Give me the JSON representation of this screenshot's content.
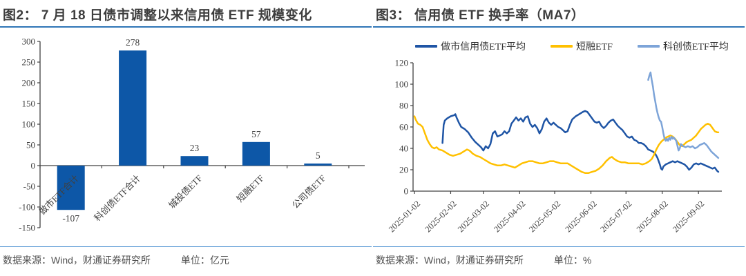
{
  "panels": [
    {
      "title": "图2：  7 月 18 日债市调整以来信用债 ETF 规模变化",
      "source": "数据来源：Wind，财通证券研究所",
      "unit_label": "单位：亿元"
    },
    {
      "title": "图3：  信用债 ETF 换手率（MA7）",
      "source": "数据来源：Wind，财通证券研究所",
      "unit_label": "单位：%"
    }
  ],
  "colors": {
    "accent_underline": "#2e75b6",
    "footer_divider": "#5b9bd5",
    "axis": "#404040"
  },
  "chart_data": [
    {
      "type": "bar",
      "title": "7 月 18 日债市调整以来信用债 ETF 规模变化",
      "categories": [
        "做市ETF合计",
        "科创债ETF合计",
        "城投债ETF",
        "短融ETF",
        "公司债ETF"
      ],
      "values": [
        -107,
        278,
        23,
        57,
        5
      ],
      "bar_color": "#0d57a7",
      "ylim": [
        -150,
        300
      ],
      "ytick_step": 50,
      "grid": false,
      "unit": "亿元"
    },
    {
      "type": "line",
      "title": "信用债 ETF 换手率（MA7）",
      "ylim": [
        0,
        120
      ],
      "ytick_step": 20,
      "grid": false,
      "legend_position": "top",
      "unit": "%",
      "x_range_days": [
        0,
        263
      ],
      "x_ticks": [
        {
          "day": 0,
          "label": "2025-01-02"
        },
        {
          "day": 31,
          "label": "2025-02-02"
        },
        {
          "day": 59,
          "label": "2025-03-02"
        },
        {
          "day": 90,
          "label": "2025-04-02"
        },
        {
          "day": 120,
          "label": "2025-05-02"
        },
        {
          "day": 151,
          "label": "2025-06-02"
        },
        {
          "day": 181,
          "label": "2025-07-02"
        },
        {
          "day": 212,
          "label": "2025-08-02"
        },
        {
          "day": 243,
          "label": "2025-09-02"
        }
      ],
      "series": [
        {
          "name": "做市信用债ETF平均",
          "color": "#1f55a5",
          "points": [
            [
              24,
              45
            ],
            [
              25,
              62
            ],
            [
              26,
              66
            ],
            [
              28,
              68
            ],
            [
              31,
              70
            ],
            [
              34,
              71
            ],
            [
              35,
              72
            ],
            [
              36,
              69
            ],
            [
              38,
              64
            ],
            [
              40,
              60
            ],
            [
              43,
              58
            ],
            [
              46,
              55
            ],
            [
              49,
              50
            ],
            [
              52,
              46
            ],
            [
              55,
              43
            ],
            [
              57,
              41
            ],
            [
              59,
              38
            ],
            [
              61,
              42
            ],
            [
              63,
              40
            ],
            [
              65,
              44
            ],
            [
              67,
              54
            ],
            [
              69,
              56
            ],
            [
              71,
              51
            ],
            [
              73,
              52
            ],
            [
              75,
              53
            ],
            [
              77,
              56
            ],
            [
              79,
              54
            ],
            [
              81,
              56
            ],
            [
              83,
              63
            ],
            [
              85,
              66
            ],
            [
              87,
              69
            ],
            [
              89,
              66
            ],
            [
              91,
              68
            ],
            [
              93,
              65
            ],
            [
              95,
              69
            ],
            [
              97,
              70
            ],
            [
              99,
              63
            ],
            [
              101,
              60
            ],
            [
              103,
              62
            ],
            [
              105,
              59
            ],
            [
              107,
              54
            ],
            [
              109,
              58
            ],
            [
              111,
              65
            ],
            [
              113,
              68
            ],
            [
              115,
              64
            ],
            [
              117,
              62
            ],
            [
              119,
              64
            ],
            [
              121,
              62
            ],
            [
              123,
              60
            ],
            [
              125,
              59
            ],
            [
              127,
              57
            ],
            [
              129,
              55
            ],
            [
              131,
              56
            ],
            [
              133,
              62
            ],
            [
              135,
              67
            ],
            [
              138,
              70
            ],
            [
              141,
              72
            ],
            [
              144,
              74
            ],
            [
              146,
              75
            ],
            [
              148,
              74
            ],
            [
              150,
              71
            ],
            [
              152,
              68
            ],
            [
              154,
              65
            ],
            [
              156,
              64
            ],
            [
              158,
              65
            ],
            [
              160,
              61
            ],
            [
              162,
              59
            ],
            [
              164,
              61
            ],
            [
              166,
              64
            ],
            [
              168,
              66
            ],
            [
              170,
              67
            ],
            [
              172,
              64
            ],
            [
              174,
              61
            ],
            [
              176,
              59
            ],
            [
              178,
              57
            ],
            [
              180,
              54
            ],
            [
              182,
              51
            ],
            [
              184,
              50
            ],
            [
              186,
              51
            ],
            [
              188,
              48
            ],
            [
              190,
              47
            ],
            [
              192,
              45
            ],
            [
              194,
              45
            ],
            [
              196,
              44
            ],
            [
              198,
              42
            ],
            [
              200,
              39
            ],
            [
              202,
              38
            ],
            [
              204,
              37
            ],
            [
              206,
              35
            ],
            [
              208,
              31
            ],
            [
              210,
              25
            ],
            [
              211,
              21
            ],
            [
              212,
              20
            ],
            [
              213,
              23
            ],
            [
              215,
              25
            ],
            [
              217,
              26
            ],
            [
              219,
              27
            ],
            [
              221,
              28
            ],
            [
              223,
              27
            ],
            [
              225,
              28
            ],
            [
              227,
              27
            ],
            [
              229,
              26
            ],
            [
              231,
              25
            ],
            [
              233,
              23
            ],
            [
              235,
              20
            ],
            [
              237,
              22
            ],
            [
              239,
              25
            ],
            [
              241,
              26
            ],
            [
              243,
              25
            ],
            [
              245,
              26
            ],
            [
              247,
              25
            ],
            [
              249,
              24
            ],
            [
              251,
              23
            ],
            [
              253,
              22
            ],
            [
              255,
              21
            ],
            [
              257,
              22
            ],
            [
              259,
              19
            ],
            [
              260,
              18
            ]
          ]
        },
        {
          "name": "短融ETF",
          "color": "#ffc000",
          "points": [
            [
              0,
              70
            ],
            [
              1,
              67
            ],
            [
              2,
              65
            ],
            [
              3,
              63
            ],
            [
              5,
              62
            ],
            [
              7,
              60
            ],
            [
              9,
              54
            ],
            [
              11,
              48
            ],
            [
              13,
              44
            ],
            [
              15,
              41
            ],
            [
              17,
              40
            ],
            [
              19,
              41
            ],
            [
              21,
              39
            ],
            [
              24,
              38
            ],
            [
              27,
              36
            ],
            [
              30,
              34
            ],
            [
              33,
              33
            ],
            [
              36,
              34
            ],
            [
              39,
              35
            ],
            [
              42,
              37
            ],
            [
              45,
              39
            ],
            [
              47,
              38
            ],
            [
              50,
              35
            ],
            [
              53,
              33
            ],
            [
              56,
              32
            ],
            [
              59,
              30
            ],
            [
              62,
              28
            ],
            [
              65,
              26
            ],
            [
              68,
              25
            ],
            [
              71,
              24
            ],
            [
              74,
              24
            ],
            [
              77,
              25
            ],
            [
              80,
              24
            ],
            [
              83,
              23
            ],
            [
              86,
              22
            ],
            [
              89,
              24
            ],
            [
              92,
              26
            ],
            [
              95,
              27
            ],
            [
              98,
              28
            ],
            [
              101,
              28
            ],
            [
              104,
              27
            ],
            [
              107,
              26
            ],
            [
              110,
              26
            ],
            [
              113,
              27
            ],
            [
              116,
              28
            ],
            [
              119,
              28
            ],
            [
              122,
              27
            ],
            [
              125,
              26
            ],
            [
              128,
              26
            ],
            [
              131,
              26
            ],
            [
              134,
              24
            ],
            [
              137,
              22
            ],
            [
              140,
              20
            ],
            [
              143,
              18
            ],
            [
              146,
              17
            ],
            [
              149,
              17
            ],
            [
              152,
              18
            ],
            [
              155,
              19
            ],
            [
              158,
              21
            ],
            [
              161,
              24
            ],
            [
              164,
              28
            ],
            [
              167,
              31
            ],
            [
              169,
              32
            ],
            [
              171,
              30
            ],
            [
              174,
              28
            ],
            [
              177,
              27
            ],
            [
              180,
              27
            ],
            [
              183,
              26
            ],
            [
              186,
              26
            ],
            [
              189,
              26
            ],
            [
              192,
              26
            ],
            [
              195,
              25
            ],
            [
              198,
              26
            ],
            [
              201,
              28
            ],
            [
              203,
              30
            ],
            [
              205,
              34
            ],
            [
              207,
              39
            ],
            [
              209,
              43
            ],
            [
              211,
              46
            ],
            [
              213,
              48
            ],
            [
              215,
              50
            ],
            [
              217,
              51
            ],
            [
              219,
              52
            ],
            [
              221,
              51
            ],
            [
              223,
              49
            ],
            [
              225,
              46
            ],
            [
              227,
              43
            ],
            [
              229,
              42
            ],
            [
              231,
              44
            ],
            [
              233,
              46
            ],
            [
              235,
              47
            ],
            [
              237,
              48
            ],
            [
              239,
              50
            ],
            [
              241,
              52
            ],
            [
              243,
              55
            ],
            [
              245,
              58
            ],
            [
              247,
              60
            ],
            [
              249,
              62
            ],
            [
              251,
              63
            ],
            [
              253,
              62
            ],
            [
              255,
              59
            ],
            [
              257,
              56
            ],
            [
              259,
              55
            ],
            [
              260,
              55
            ]
          ]
        },
        {
          "name": "科创债ETF平均",
          "color": "#7da4d8",
          "points": [
            [
              200,
              104
            ],
            [
              201,
              108
            ],
            [
              202,
              111
            ],
            [
              203,
              104
            ],
            [
              204,
              98
            ],
            [
              205,
              90
            ],
            [
              206,
              84
            ],
            [
              207,
              78
            ],
            [
              208,
              73
            ],
            [
              209,
              69
            ],
            [
              210,
              66
            ],
            [
              211,
              65
            ],
            [
              212,
              60
            ],
            [
              213,
              54
            ],
            [
              214,
              49
            ],
            [
              215,
              47
            ],
            [
              216,
              49
            ],
            [
              217,
              47
            ],
            [
              218,
              50
            ],
            [
              219,
              48
            ],
            [
              220,
              51
            ],
            [
              221,
              49
            ],
            [
              222,
              50
            ],
            [
              224,
              47
            ],
            [
              226,
              38
            ],
            [
              227,
              40
            ],
            [
              228,
              44
            ],
            [
              230,
              42
            ],
            [
              232,
              41
            ],
            [
              234,
              42
            ],
            [
              236,
              41
            ],
            [
              238,
              42
            ],
            [
              240,
              40
            ],
            [
              242,
              41
            ],
            [
              244,
              43
            ],
            [
              246,
              44
            ],
            [
              248,
              45
            ],
            [
              250,
              43
            ],
            [
              252,
              40
            ],
            [
              254,
              37
            ],
            [
              256,
              35
            ],
            [
              258,
              33
            ],
            [
              260,
              31
            ]
          ]
        }
      ]
    }
  ]
}
